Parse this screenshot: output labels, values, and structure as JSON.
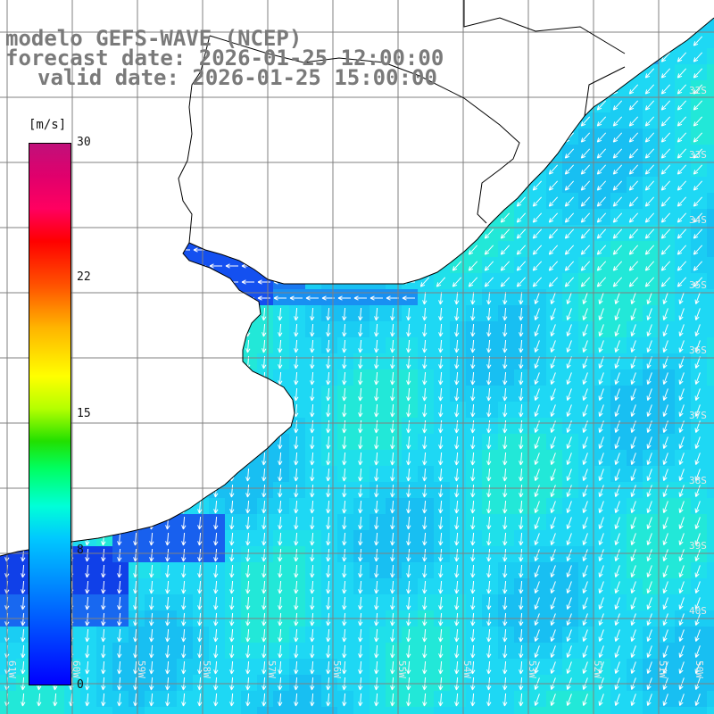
{
  "header": {
    "line1": "modelo GEFS-WAVE (NCEP)",
    "line2": "forecast date: 2026-01-25 12:00:00",
    "line3": "valid date: 2026-01-25 15:00:00"
  },
  "colorbar": {
    "unit": "[m/s]",
    "ticks": [
      "30",
      "22",
      "15",
      "8",
      "0"
    ],
    "min": 0,
    "max": 30
  },
  "grid": {
    "lon_labels": [
      "61W",
      "60W",
      "59W",
      "58W",
      "57W",
      "56W",
      "55W",
      "54W",
      "53W",
      "52W",
      "51W",
      "50W"
    ],
    "lat_labels": [
      "32S",
      "33S",
      "34S",
      "35S",
      "36S",
      "37S",
      "38S",
      "39S",
      "40S"
    ]
  },
  "colors": {
    "land": "#ffffff",
    "coastline": "#000000",
    "gridline": "#808080",
    "arrows": "#ffffff",
    "title": "#7a7a7a"
  },
  "map_data": {
    "variable": "wind speed at 10 m",
    "source": "GEFS-WAVE",
    "speed_range_ms": [
      4,
      11
    ],
    "dominant_direction": "northeasterly (flow toward SW/S)",
    "wind_at_river_mouth": "easterly, weak"
  }
}
